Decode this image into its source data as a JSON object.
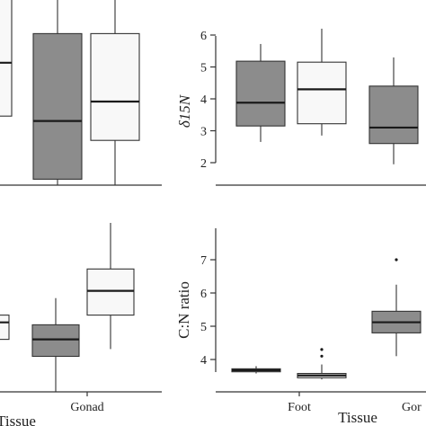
{
  "colors": {
    "dark_box": "#8c8c8c",
    "light_box": "#f8f8f8",
    "axis": "#333333",
    "median": "#1a1a1a"
  },
  "chart_data": [
    {
      "type": "box",
      "panel": "top-left",
      "ylabel": "",
      "groups": [
        {
          "fill": "light",
          "whisker_low": null,
          "q1": 3.6,
          "median": 4.15,
          "q3": 4.85,
          "whisker_high": null
        },
        {
          "fill": "dark",
          "whisker_low": 2.05,
          "q1": 2.95,
          "median": 3.55,
          "q3": 4.45,
          "whisker_high": 5.35
        },
        {
          "fill": "light",
          "whisker_low": 2.25,
          "q1": 3.35,
          "median": 3.75,
          "q3": 4.45,
          "whisker_high": 5.0
        }
      ]
    },
    {
      "type": "box",
      "panel": "top-right",
      "ylabel": "δ15N",
      "yticks": [
        2,
        3,
        4,
        5,
        6
      ],
      "ylim": [
        1.7,
        6.3
      ],
      "groups": [
        {
          "fill": "dark",
          "whisker_low": 2.65,
          "q1": 3.15,
          "median": 3.88,
          "q3": 5.18,
          "whisker_high": 5.72
        },
        {
          "fill": "light",
          "whisker_low": 2.85,
          "q1": 3.22,
          "median": 4.3,
          "q3": 5.15,
          "whisker_high": 6.2
        },
        {
          "fill": "dark",
          "whisker_low": 1.95,
          "q1": 2.6,
          "median": 3.1,
          "q3": 4.4,
          "whisker_high": 5.3
        }
      ]
    },
    {
      "type": "box",
      "panel": "bottom-left",
      "xlabel": "Tissue",
      "categories": [
        "Gonad"
      ],
      "groups": [
        {
          "fill": "light",
          "whisker_low": null,
          "q1": 3.1,
          "median": 3.45,
          "q3": 3.6,
          "whisker_high": null
        },
        {
          "fill": "dark",
          "whisker_low": 1.85,
          "q1": 2.75,
          "median": 3.1,
          "q3": 3.4,
          "whisker_high": 3.95
        },
        {
          "fill": "light",
          "whisker_low": 2.9,
          "q1": 3.6,
          "median": 4.1,
          "q3": 4.55,
          "whisker_high": 5.5
        }
      ]
    },
    {
      "type": "box",
      "panel": "bottom-right",
      "ylabel": "C:N ratio",
      "xlabel": "Tissue",
      "categories": [
        "Foot",
        "Gor"
      ],
      "yticks": [
        4,
        5,
        6,
        7
      ],
      "ylim": [
        3.1,
        7.9
      ],
      "groups": [
        {
          "fill": "dark",
          "whisker_low": 3.58,
          "q1": 3.63,
          "median": 3.68,
          "q3": 3.72,
          "whisker_high": 3.8,
          "outliers": []
        },
        {
          "fill": "light",
          "whisker_low": 3.4,
          "q1": 3.45,
          "median": 3.52,
          "q3": 3.58,
          "whisker_high": 3.85,
          "outliers": [
            4.1,
            4.3
          ]
        },
        {
          "fill": "dark",
          "whisker_low": 4.1,
          "q1": 4.8,
          "median": 5.12,
          "q3": 5.45,
          "whisker_high": 6.25,
          "outliers": [
            7.0
          ]
        }
      ]
    }
  ]
}
